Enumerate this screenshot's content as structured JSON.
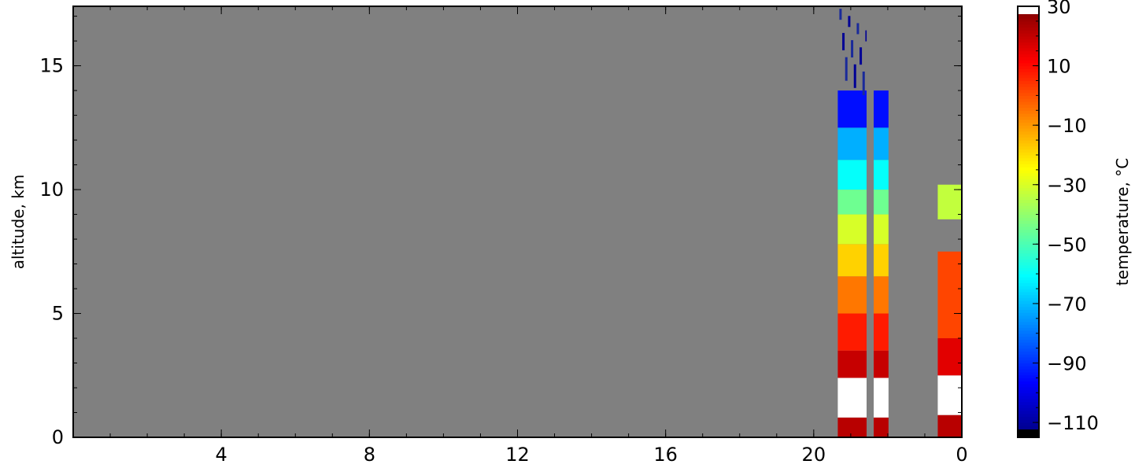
{
  "chart_data": [
    {
      "type": "heatmap",
      "title": "",
      "xlabel": "",
      "ylabel": "altitude, km",
      "x_ticks": [
        "4",
        "8",
        "12",
        "16",
        "20",
        "0"
      ],
      "x_tick_positions_hours": [
        4,
        8,
        12,
        16,
        20,
        24
      ],
      "xlim": [
        0,
        24
      ],
      "y_ticks": [
        "0",
        "5",
        "10",
        "15"
      ],
      "y_tick_values": [
        0,
        5,
        10,
        15
      ],
      "ylim": [
        0,
        17.4
      ],
      "background_color": "#808080",
      "grid": false,
      "columns": [
        {
          "x_range": [
            20.65,
            21.43
          ],
          "gap_x_range": [
            21.43,
            21.62
          ],
          "profile": [
            {
              "y": [
                0.0,
                0.8
              ],
              "temp_c": 22
            },
            {
              "y": [
                0.8,
                2.4
              ],
              "temp_c": 30,
              "note_color": "#ffffff"
            },
            {
              "y": [
                2.4,
                3.5
              ],
              "temp_c": 20
            },
            {
              "y": [
                3.5,
                5.0
              ],
              "temp_c": 8
            },
            {
              "y": [
                5.0,
                6.5
              ],
              "temp_c": -5
            },
            {
              "y": [
                6.5,
                7.8
              ],
              "temp_c": -18
            },
            {
              "y": [
                7.8,
                9.0
              ],
              "temp_c": -30
            },
            {
              "y": [
                9.0,
                10.0
              ],
              "temp_c": -45
            },
            {
              "y": [
                10.0,
                11.2
              ],
              "temp_c": -60
            },
            {
              "y": [
                11.2,
                12.5
              ],
              "temp_c": -72
            },
            {
              "y": [
                12.5,
                14.0
              ],
              "temp_c": -95
            },
            {
              "y": [
                14.0,
                17.3
              ],
              "temp_c": -112,
              "sparse": true
            }
          ]
        },
        {
          "x_range": [
            23.35,
            24.0
          ],
          "profile": [
            {
              "y": [
                0.0,
                0.9
              ],
              "temp_c": 22
            },
            {
              "y": [
                0.9,
                2.5
              ],
              "temp_c": 30,
              "note_color": "#ffffff"
            },
            {
              "y": [
                2.5,
                4.0
              ],
              "temp_c": 16
            },
            {
              "y": [
                4.0,
                7.5
              ],
              "temp_c": 2
            },
            {
              "y": [
                8.8,
                10.2
              ],
              "temp_c": -33
            }
          ]
        }
      ]
    },
    {
      "type": "colorbar",
      "label": "temperature, °C",
      "range": [
        -115,
        30
      ],
      "ticks": [
        "30",
        "10",
        "−10",
        "−30",
        "−50",
        "−70",
        "−90",
        "−110"
      ],
      "tick_values": [
        30,
        10,
        -10,
        -30,
        -50,
        -70,
        -90,
        -110
      ],
      "colormap": "jet",
      "over_color": "#ffffff",
      "under_color": "#000000"
    }
  ]
}
